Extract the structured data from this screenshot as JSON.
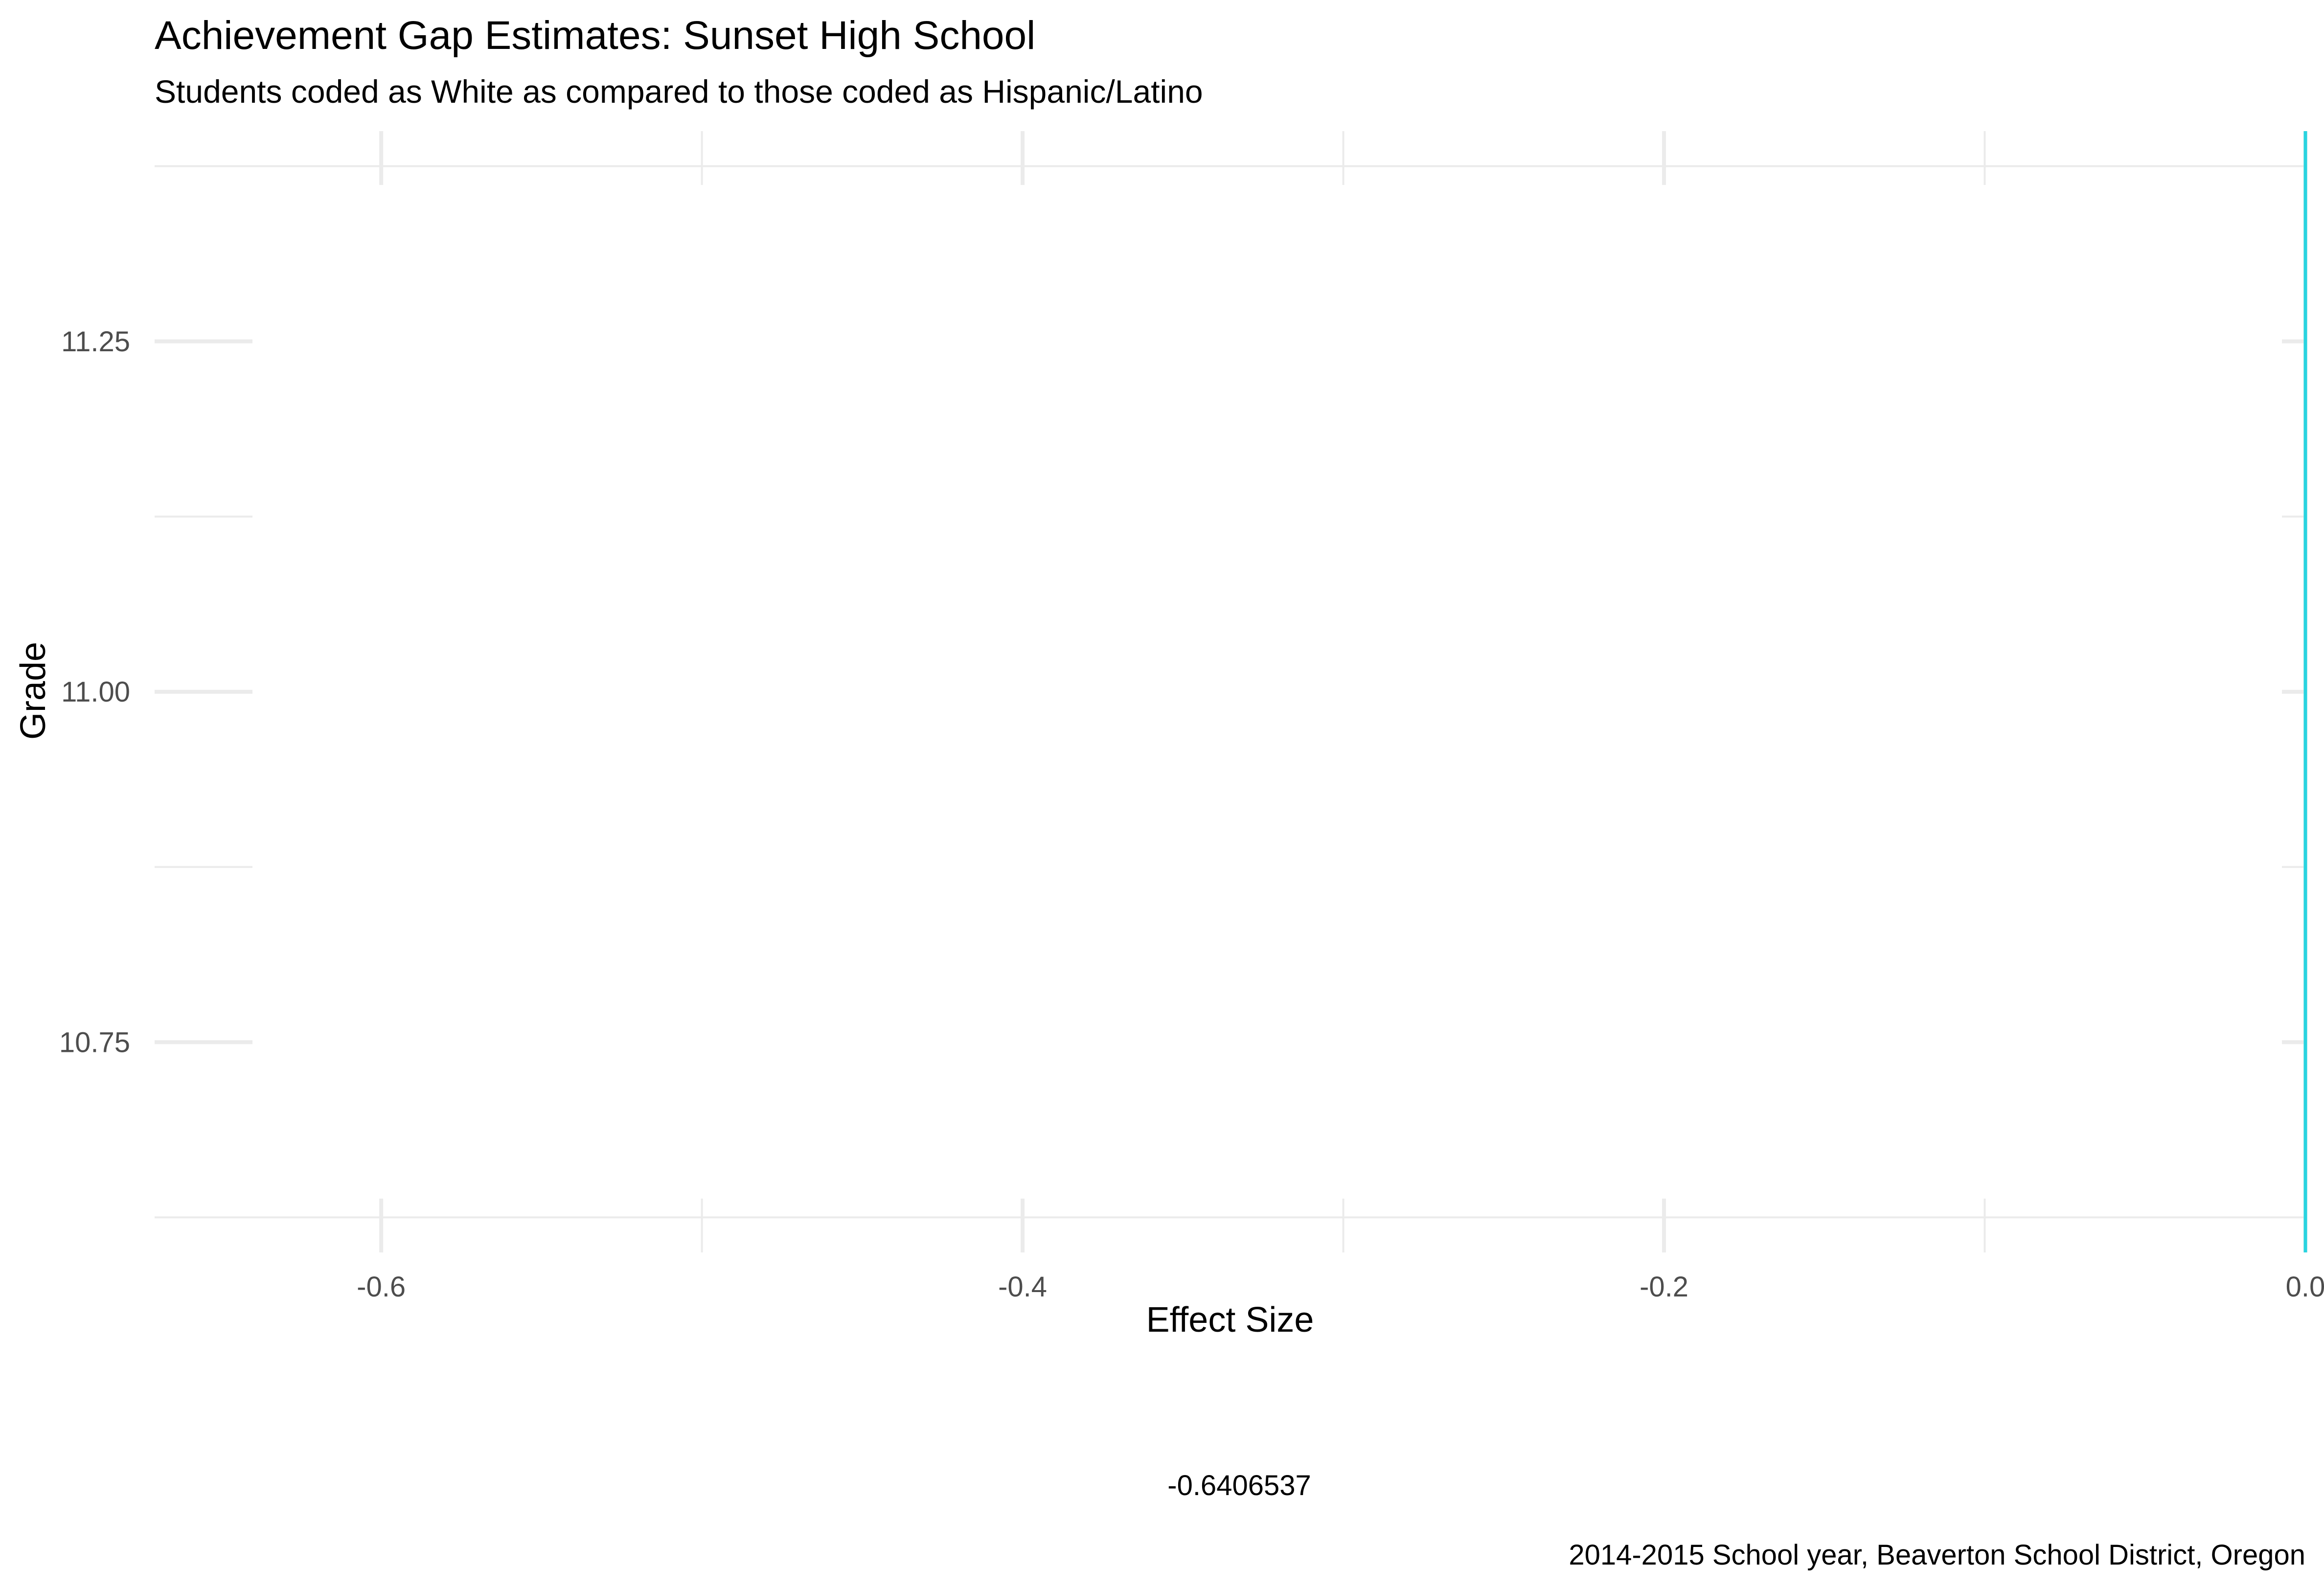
{
  "chart_data": {
    "type": "line",
    "title": "Achievement Gap Estimates: Sunset High School",
    "subtitle": "Students coded as White as compared to those coded as Hispanic/Latino",
    "xlabel": "Effect Size",
    "ylabel": "Grade",
    "caption": "2014-2015 School year, Beaverton School District, Oregon",
    "annotation": "-0.6406537",
    "xlim": [
      -0.6706537,
      0.0
    ],
    "ylim": [
      10.6,
      11.4
    ],
    "x_ticks": [
      -0.6,
      -0.4,
      -0.2,
      0.0
    ],
    "x_tick_labels": [
      "-0.6",
      "-0.4",
      "-0.2",
      "0.0"
    ],
    "x_minor_ticks": [
      -0.5,
      -0.3,
      -0.1
    ],
    "y_ticks": [
      10.75,
      11.0,
      11.25
    ],
    "y_tick_labels": [
      "10.75",
      "11.00",
      "11.25"
    ],
    "y_minor_ticks": [
      10.625,
      10.875,
      11.125,
      11.375
    ],
    "reference_line": {
      "x": 0.0,
      "color": "#29d4e0"
    },
    "gap_estimate": -0.6406537,
    "grid": true,
    "legend": "none"
  }
}
